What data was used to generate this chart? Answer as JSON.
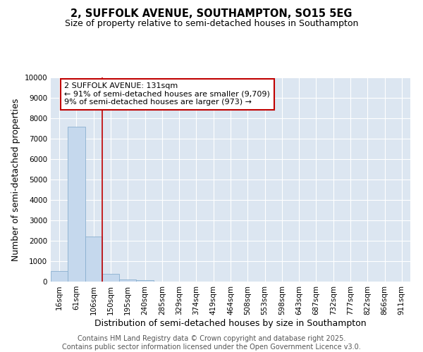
{
  "title": "2, SUFFOLK AVENUE, SOUTHAMPTON, SO15 5EG",
  "subtitle": "Size of property relative to semi-detached houses in Southampton",
  "xlabel": "Distribution of semi-detached houses by size in Southampton",
  "ylabel": "Number of semi-detached properties",
  "categories": [
    "16sqm",
    "61sqm",
    "106sqm",
    "150sqm",
    "195sqm",
    "240sqm",
    "285sqm",
    "329sqm",
    "374sqm",
    "419sqm",
    "464sqm",
    "508sqm",
    "553sqm",
    "598sqm",
    "643sqm",
    "687sqm",
    "732sqm",
    "777sqm",
    "822sqm",
    "866sqm",
    "911sqm"
  ],
  "values": [
    530,
    7600,
    2200,
    380,
    120,
    80,
    0,
    0,
    0,
    0,
    0,
    0,
    0,
    0,
    0,
    0,
    0,
    0,
    0,
    0,
    0
  ],
  "bar_color": "#c5d8ed",
  "bar_edge_color": "#8ab0d0",
  "property_line_x": 2.5,
  "property_line_color": "#c00000",
  "annotation_text": "2 SUFFOLK AVENUE: 131sqm\n← 91% of semi-detached houses are smaller (9,709)\n9% of semi-detached houses are larger (973) →",
  "annotation_box_color": "#c00000",
  "ylim": [
    0,
    10000
  ],
  "yticks": [
    0,
    1000,
    2000,
    3000,
    4000,
    5000,
    6000,
    7000,
    8000,
    9000,
    10000
  ],
  "background_color": "#dce6f1",
  "grid_color": "#ffffff",
  "footer_line1": "Contains HM Land Registry data © Crown copyright and database right 2025.",
  "footer_line2": "Contains public sector information licensed under the Open Government Licence v3.0.",
  "title_fontsize": 10.5,
  "subtitle_fontsize": 9,
  "axis_label_fontsize": 9,
  "tick_fontsize": 7.5,
  "annotation_fontsize": 8,
  "footer_fontsize": 7
}
